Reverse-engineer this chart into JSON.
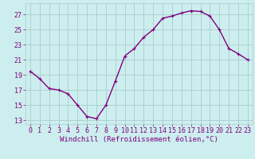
{
  "x": [
    0,
    1,
    2,
    3,
    4,
    5,
    6,
    7,
    8,
    9,
    10,
    11,
    12,
    13,
    14,
    15,
    16,
    17,
    18,
    19,
    20,
    21,
    22,
    23
  ],
  "y": [
    19.5,
    18.5,
    17.2,
    17.0,
    16.5,
    15.0,
    13.5,
    13.2,
    15.0,
    18.2,
    21.5,
    22.5,
    24.0,
    25.0,
    26.5,
    26.8,
    27.2,
    27.5,
    27.4,
    26.8,
    25.0,
    22.5,
    21.8,
    21.0
  ],
  "line_color": "#800080",
  "marker": "P",
  "marker_size": 2.5,
  "bg_color": "#cceeee",
  "grid_color": "#aacccc",
  "xlabel": "Windchill (Refroidissement éolien,°C)",
  "ylabel": "",
  "yticks": [
    13,
    15,
    17,
    19,
    21,
    23,
    25,
    27
  ],
  "xticks": [
    0,
    1,
    2,
    3,
    4,
    5,
    6,
    7,
    8,
    9,
    10,
    11,
    12,
    13,
    14,
    15,
    16,
    17,
    18,
    19,
    20,
    21,
    22,
    23
  ],
  "xlim": [
    -0.5,
    23.5
  ],
  "ylim": [
    12.5,
    28.5
  ],
  "linewidth": 1.0,
  "label_fontsize": 6.5,
  "tick_fontsize": 6.0
}
